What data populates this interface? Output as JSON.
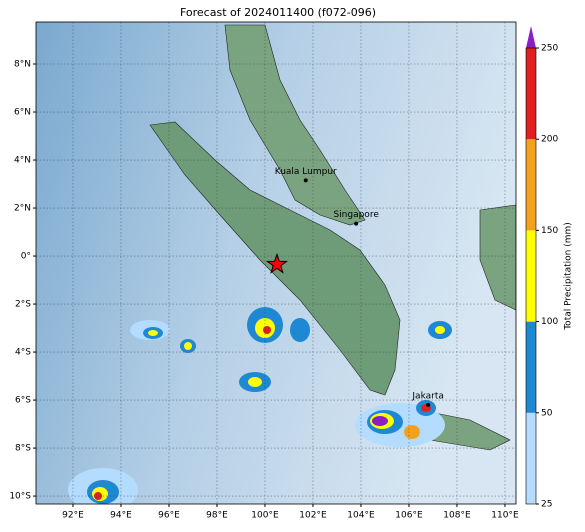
{
  "map": {
    "title": "Forecast of 2024011400 (f072-096)",
    "lonlim": [
      90.46,
      110.46
    ],
    "latlim": [
      -10.33,
      9.75
    ],
    "xticks": [
      {
        "value": 92,
        "label": "92°E"
      },
      {
        "value": 94,
        "label": "94°E"
      },
      {
        "value": 96,
        "label": "96°E"
      },
      {
        "value": 98,
        "label": "98°E"
      },
      {
        "value": 100,
        "label": "100°E"
      },
      {
        "value": 102,
        "label": "102°E"
      },
      {
        "value": 104,
        "label": "104°E"
      },
      {
        "value": 106,
        "label": "106°E"
      },
      {
        "value": 108,
        "label": "108°E"
      },
      {
        "value": 110,
        "label": "110°E"
      }
    ],
    "yticks": [
      {
        "value": 8,
        "label": "8°N"
      },
      {
        "value": 6,
        "label": "6°N"
      },
      {
        "value": 4,
        "label": "4°N"
      },
      {
        "value": 2,
        "label": "2°N"
      },
      {
        "value": 0,
        "label": "0°"
      },
      {
        "value": -2,
        "label": "2°S"
      },
      {
        "value": -4,
        "label": "4°S"
      },
      {
        "value": -6,
        "label": "6°S"
      },
      {
        "value": -8,
        "label": "8°S"
      },
      {
        "value": -10,
        "label": "10°S"
      }
    ],
    "grid": true,
    "cities": [
      {
        "name": "Kuala Lumpur",
        "lon": 101.7,
        "lat": 3.15
      },
      {
        "name": "Singapore",
        "lon": 103.8,
        "lat": 1.35
      },
      {
        "name": "Jakarta",
        "lon": 106.8,
        "lat": -6.2
      }
    ],
    "star": {
      "lon": 100.5,
      "lat": -0.35,
      "color": "#ff0000"
    },
    "colorbar": {
      "label": "Total Precipitation (mm)",
      "ticks": [
        25,
        50,
        100,
        150,
        200,
        250
      ],
      "colors": [
        "#b4dcff",
        "#1e88d2",
        "#ffff00",
        "#f4a21e",
        "#e02020"
      ],
      "extend_color": "#8a1fc4"
    }
  }
}
